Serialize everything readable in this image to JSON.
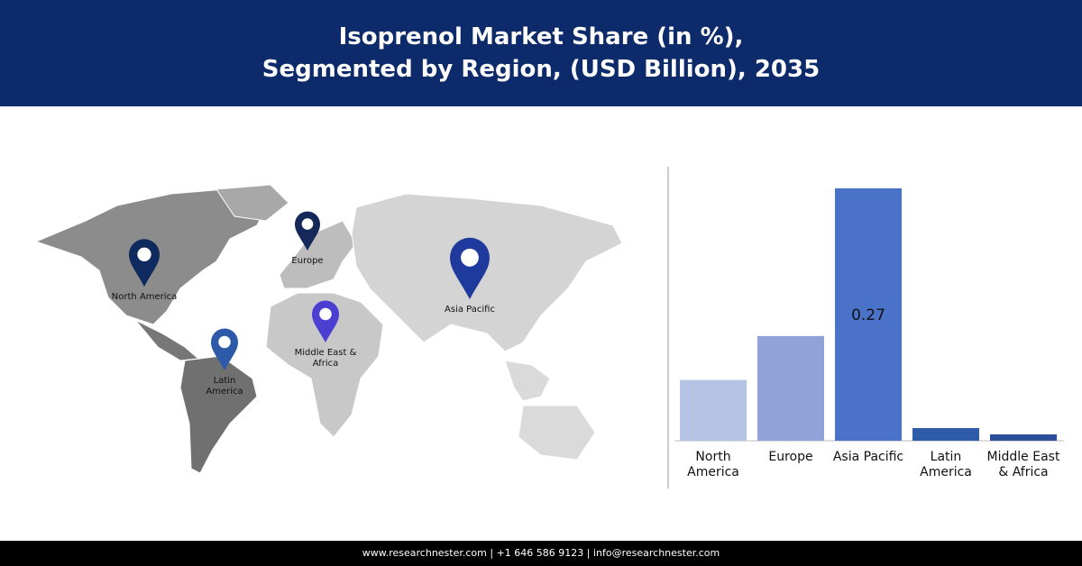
{
  "header": {
    "title": "Isoprenol Market Share (in %),\nSegmented by Region, (USD Billion), 2035"
  },
  "map": {
    "pins": [
      {
        "label": "North America",
        "color": "#0f2a5e"
      },
      {
        "label": "Europe",
        "color": "#14285a"
      },
      {
        "label": "Asia Pacific",
        "color": "#1d3a9c"
      },
      {
        "label": "Middle East &\nAfrica",
        "color": "#4a3fd0"
      },
      {
        "label": "Latin\nAmerica",
        "color": "#2d5aa8"
      }
    ]
  },
  "chart_data": {
    "type": "bar",
    "categories": [
      "North\nAmerica",
      "Europe",
      "Asia Pacific",
      "Latin\nAmerica",
      "Middle East\n& Africa"
    ],
    "values": [
      0.065,
      0.112,
      0.27,
      0.0135,
      0.0068
    ],
    "value_labels": [
      null,
      null,
      "0.27",
      null,
      null
    ],
    "colors": [
      "#b4c2e4",
      "#8fa3d8",
      "#4a72c8",
      "#2e5baa",
      "#2d4f9a"
    ]
  },
  "footer": {
    "text": "www.researchnester.com | +1 646 586 9123 | info@researchnester.com"
  }
}
